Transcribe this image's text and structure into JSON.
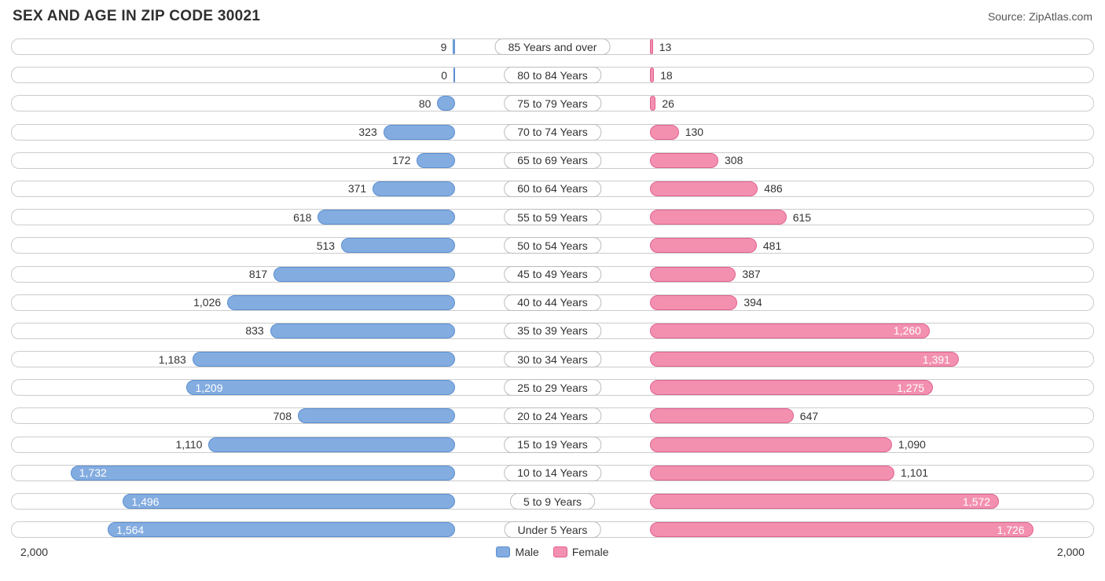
{
  "title": "SEX AND AGE IN ZIP CODE 30021",
  "source": "Source: ZipAtlas.com",
  "chart": {
    "type": "population-pyramid",
    "max_value": 2000,
    "axis_left_label": "2,000",
    "axis_right_label": "2,000",
    "inside_label_threshold": 1200,
    "colors": {
      "male_fill": "#83ace0",
      "male_border": "#5b8fd0",
      "female_fill": "#f390b0",
      "female_border": "#e0628f",
      "track_border": "#cccccc",
      "pill_border": "#bcbcbc",
      "text": "#333333",
      "title_text": "#2f2f2f",
      "source_text": "#555555",
      "background": "#ffffff"
    },
    "typography": {
      "title_fontsize": 19,
      "label_fontsize": 14,
      "source_fontsize": 14
    },
    "legend": [
      {
        "label": "Male",
        "color": "#83ace0",
        "border": "#5b8fd0"
      },
      {
        "label": "Female",
        "color": "#f390b0",
        "border": "#e0628f"
      }
    ],
    "categories": [
      {
        "label": "85 Years and over",
        "male": 9,
        "male_fmt": "9",
        "female": 13,
        "female_fmt": "13"
      },
      {
        "label": "80 to 84 Years",
        "male": 0,
        "male_fmt": "0",
        "female": 18,
        "female_fmt": "18"
      },
      {
        "label": "75 to 79 Years",
        "male": 80,
        "male_fmt": "80",
        "female": 26,
        "female_fmt": "26"
      },
      {
        "label": "70 to 74 Years",
        "male": 323,
        "male_fmt": "323",
        "female": 130,
        "female_fmt": "130"
      },
      {
        "label": "65 to 69 Years",
        "male": 172,
        "male_fmt": "172",
        "female": 308,
        "female_fmt": "308"
      },
      {
        "label": "60 to 64 Years",
        "male": 371,
        "male_fmt": "371",
        "female": 486,
        "female_fmt": "486"
      },
      {
        "label": "55 to 59 Years",
        "male": 618,
        "male_fmt": "618",
        "female": 615,
        "female_fmt": "615"
      },
      {
        "label": "50 to 54 Years",
        "male": 513,
        "male_fmt": "513",
        "female": 481,
        "female_fmt": "481"
      },
      {
        "label": "45 to 49 Years",
        "male": 817,
        "male_fmt": "817",
        "female": 387,
        "female_fmt": "387"
      },
      {
        "label": "40 to 44 Years",
        "male": 1026,
        "male_fmt": "1,026",
        "female": 394,
        "female_fmt": "394"
      },
      {
        "label": "35 to 39 Years",
        "male": 833,
        "male_fmt": "833",
        "female": 1260,
        "female_fmt": "1,260"
      },
      {
        "label": "30 to 34 Years",
        "male": 1183,
        "male_fmt": "1,183",
        "female": 1391,
        "female_fmt": "1,391"
      },
      {
        "label": "25 to 29 Years",
        "male": 1209,
        "male_fmt": "1,209",
        "female": 1275,
        "female_fmt": "1,275"
      },
      {
        "label": "20 to 24 Years",
        "male": 708,
        "male_fmt": "708",
        "female": 647,
        "female_fmt": "647"
      },
      {
        "label": "15 to 19 Years",
        "male": 1110,
        "male_fmt": "1,110",
        "female": 1090,
        "female_fmt": "1,090"
      },
      {
        "label": "10 to 14 Years",
        "male": 1732,
        "male_fmt": "1,732",
        "female": 1101,
        "female_fmt": "1,101"
      },
      {
        "label": "5 to 9 Years",
        "male": 1496,
        "male_fmt": "1,496",
        "female": 1572,
        "female_fmt": "1,572"
      },
      {
        "label": "Under 5 Years",
        "male": 1564,
        "male_fmt": "1,564",
        "female": 1726,
        "female_fmt": "1,726"
      }
    ]
  }
}
